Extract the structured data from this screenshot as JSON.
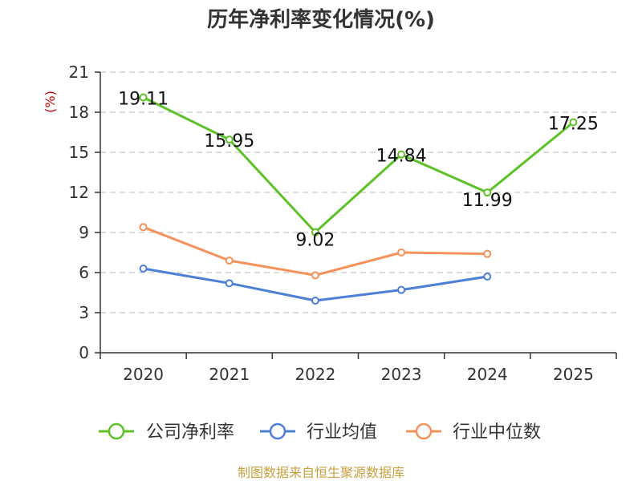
{
  "chart_data": {
    "type": "line",
    "title": "历年净利率变化情况(%)",
    "ylabel": "(%)",
    "xlabel": "",
    "categories": [
      "2020",
      "2021",
      "2022",
      "2023",
      "2024",
      "2025"
    ],
    "ylim": [
      0,
      21
    ],
    "yticks": [
      0,
      3,
      6,
      9,
      12,
      15,
      18,
      21
    ],
    "grid": "horizontal-dashed",
    "legend_position": "bottom",
    "series": [
      {
        "name": "公司净利率",
        "color": "#5cc227",
        "values": [
          19.11,
          15.95,
          9.02,
          14.84,
          11.99,
          17.25
        ],
        "data_labels": [
          "19.11",
          "15.95",
          "9.02",
          "14.84",
          "11.99",
          "17.25"
        ]
      },
      {
        "name": "行业均值",
        "color": "#4c7fd6",
        "values": [
          6.3,
          5.2,
          3.9,
          4.7,
          5.7,
          null
        ]
      },
      {
        "name": "行业中位数",
        "color": "#f7915a",
        "values": [
          9.4,
          6.9,
          5.8,
          7.5,
          7.4,
          null
        ]
      }
    ]
  },
  "source_text": "制图数据来自恒生聚源数据库",
  "colors": {
    "unit_label": "#cc0000",
    "source": "#c8a040",
    "axis": "#333333",
    "grid": "#bbbbbb"
  }
}
